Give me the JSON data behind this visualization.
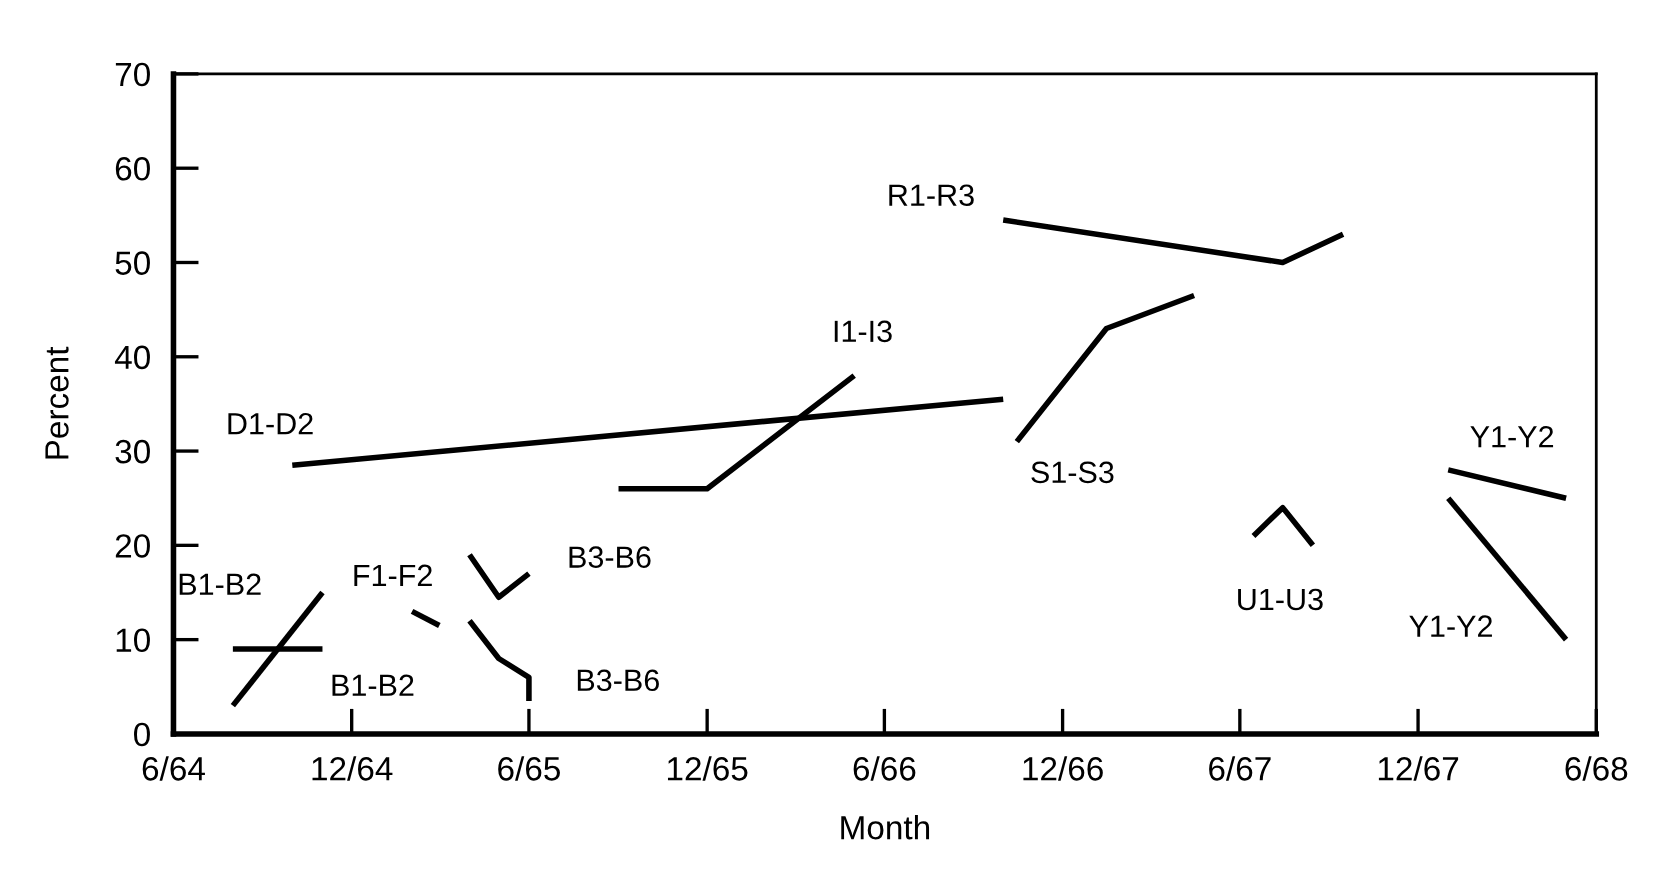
{
  "chart_data": {
    "type": "line",
    "xlabel": "Month",
    "ylabel": "Percent",
    "xlim": [
      "1964-06-01",
      "1968-06-01"
    ],
    "ylim": [
      0,
      70
    ],
    "xticks": [
      {
        "value": "1964-06-01",
        "label": "6/64"
      },
      {
        "value": "1964-12-01",
        "label": "12/64"
      },
      {
        "value": "1965-06-01",
        "label": "6/65"
      },
      {
        "value": "1965-12-01",
        "label": "12/65"
      },
      {
        "value": "1966-06-01",
        "label": "6/66"
      },
      {
        "value": "1966-12-01",
        "label": "12/66"
      },
      {
        "value": "1967-06-01",
        "label": "6/67"
      },
      {
        "value": "1967-12-01",
        "label": "12/67"
      },
      {
        "value": "1968-06-01",
        "label": "6/68"
      }
    ],
    "yticks": [
      0,
      10,
      20,
      30,
      40,
      50,
      60,
      70
    ],
    "series": [
      {
        "name": "B1-B2",
        "color": "#000000",
        "x": [
          "1964-08-01",
          "1964-11-01"
        ],
        "values": [
          9,
          9
        ]
      },
      {
        "name": "B1-B2",
        "color": "#000000",
        "x": [
          "1964-08-01",
          "1964-11-01"
        ],
        "values": [
          3,
          15
        ]
      },
      {
        "name": "F1-F2",
        "color": "#000000",
        "x": [
          "1965-02-01",
          "1965-03-01"
        ],
        "values": [
          13,
          11.5
        ]
      },
      {
        "name": "B3-B6",
        "color": "#000000",
        "x": [
          "1965-04-01",
          "1965-05-01",
          "1965-06-01"
        ],
        "values": [
          19,
          14.5,
          17
        ]
      },
      {
        "name": "B3-B6",
        "color": "#000000",
        "x": [
          "1965-04-01",
          "1965-05-01",
          "1965-06-01",
          "1965-06-01"
        ],
        "values": [
          12,
          8,
          6,
          3.5
        ]
      },
      {
        "name": "D1-D2",
        "color": "#000000",
        "x": [
          "1964-10-01",
          "1966-10-01"
        ],
        "values": [
          28.5,
          35.5
        ]
      },
      {
        "name": "I1-I3",
        "color": "#000000",
        "x": [
          "1965-09-01",
          "1965-12-01",
          "1966-05-01"
        ],
        "values": [
          26,
          26,
          38
        ]
      },
      {
        "name": "S1-S3",
        "color": "#000000",
        "x": [
          "1966-10-15",
          "1967-01-15",
          "1967-04-15"
        ],
        "values": [
          31,
          43,
          46.5
        ]
      },
      {
        "name": "R1-R3",
        "color": "#000000",
        "x": [
          "1966-10-01",
          "1967-07-15",
          "1967-09-15"
        ],
        "values": [
          54.5,
          50,
          53
        ]
      },
      {
        "name": "U1-U3",
        "color": "#000000",
        "x": [
          "1967-06-15",
          "1967-07-15",
          "1967-08-15"
        ],
        "values": [
          21,
          24,
          20
        ]
      },
      {
        "name": "Y1-Y2",
        "color": "#000000",
        "x": [
          "1968-01-01",
          "1968-05-01"
        ],
        "values": [
          28,
          25
        ]
      },
      {
        "name": "Y1-Y2",
        "color": "#000000",
        "x": [
          "1968-01-01",
          "1968-05-01"
        ],
        "values": [
          25,
          10
        ]
      }
    ]
  }
}
